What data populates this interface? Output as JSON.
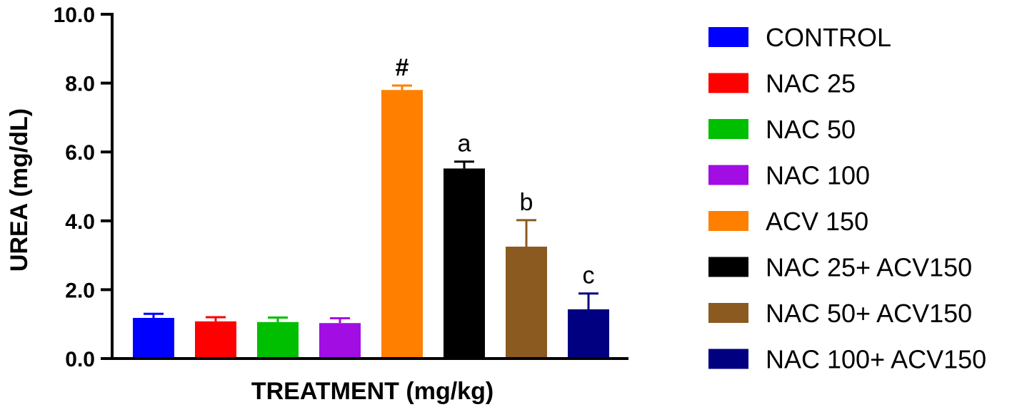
{
  "chart_data": {
    "type": "bar",
    "title": "",
    "xlabel": "TREATMENT (mg/kg)",
    "ylabel": "UREA (mg/dL)",
    "ylim": [
      0,
      10
    ],
    "yticks": [
      "0.0",
      "2.0",
      "4.0",
      "6.0",
      "8.0",
      "10.0"
    ],
    "yticks_values": [
      0,
      2,
      4,
      6,
      8,
      10
    ],
    "grid": false,
    "legend_position": "right",
    "categories": [
      "CONTROL",
      "NAC 25",
      "NAC 50",
      "NAC 100",
      "ACV 150",
      "NAC 25+ ACV150",
      "NAC 50+ ACV150",
      "NAC 100+ ACV150"
    ],
    "values": [
      1.18,
      1.08,
      1.06,
      1.03,
      7.8,
      5.52,
      3.25,
      1.43
    ],
    "errors": [
      0.12,
      0.12,
      0.13,
      0.14,
      0.13,
      0.2,
      0.77,
      0.46
    ],
    "colors": [
      "#0000ff",
      "#ff0000",
      "#00bf00",
      "#a10de3",
      "#ff7f00",
      "#000000",
      "#8b5a21",
      "#000080"
    ],
    "annotations": [
      "",
      "",
      "",
      "",
      "#",
      "a",
      "b",
      "c"
    ]
  }
}
